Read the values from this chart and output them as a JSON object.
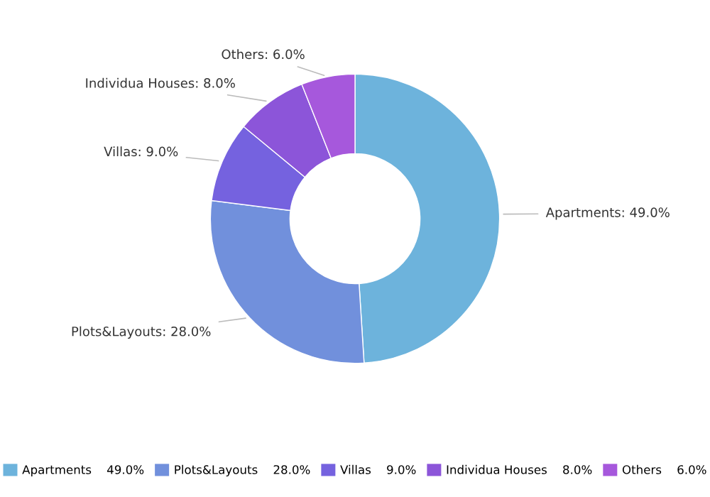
{
  "chart_data": {
    "type": "donut",
    "categories": [
      "Apartments",
      "Plots&Layouts",
      "Villas",
      "Individua Houses",
      "Others"
    ],
    "values": [
      49.0,
      28.0,
      9.0,
      8.0,
      6.0
    ],
    "value_labels": [
      "49.0%",
      "28.0%",
      "9.0%",
      "8.0%",
      "6.0%"
    ],
    "colors": [
      "#6db3dc",
      "#7190dc",
      "#7562df",
      "#8c55d9",
      "#a658dc"
    ],
    "legend": "bottom"
  }
}
